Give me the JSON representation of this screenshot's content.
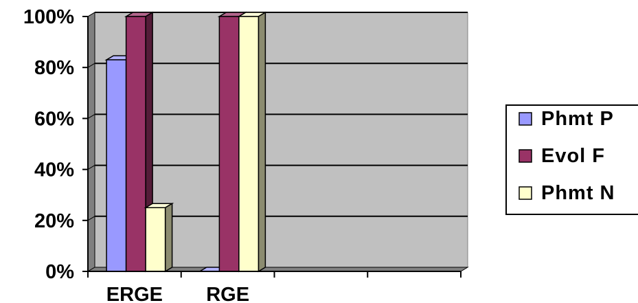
{
  "chart_data": {
    "type": "bar",
    "categories": [
      "ERGE",
      "RGE",
      "",
      ""
    ],
    "series": [
      {
        "name": "Phmt P",
        "values": [
          83,
          0,
          null,
          null
        ]
      },
      {
        "name": "Evol F",
        "values": [
          100,
          100,
          null,
          null
        ]
      },
      {
        "name": "Phmt N",
        "values": [
          25,
          100,
          null,
          null
        ]
      }
    ],
    "y_ticks": [
      "0%",
      "20%",
      "40%",
      "60%",
      "80%",
      "100%"
    ],
    "ylim": [
      0,
      100
    ],
    "grid": true,
    "legend_position": "right",
    "colors": {
      "Phmt P": "#9999ff",
      "Evol F": "#993366",
      "Phmt N": "#ffffcc",
      "plot_background": "#c0c0c0",
      "wall_side": "#808080"
    }
  }
}
